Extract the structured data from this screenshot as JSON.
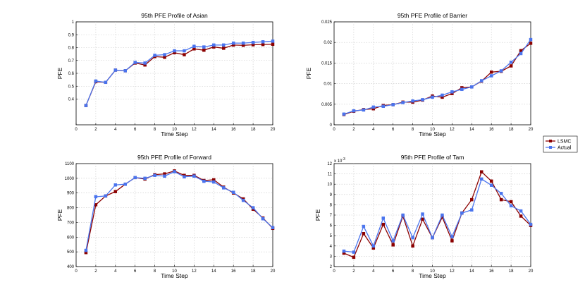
{
  "chart_data": [
    {
      "type": "line",
      "title": "95th PFE Profile of Asian",
      "xlabel": "Time Step",
      "ylabel": "PFE",
      "xlim": [
        0,
        20
      ],
      "ylim": [
        0.2,
        1
      ],
      "xticks": [
        0,
        2,
        4,
        6,
        8,
        10,
        12,
        14,
        16,
        18,
        20
      ],
      "yticks": [
        0.4,
        0.5,
        0.6,
        0.7,
        0.8,
        0.9,
        1
      ],
      "x": [
        1,
        2,
        3,
        4,
        5,
        6,
        7,
        8,
        9,
        10,
        11,
        12,
        13,
        14,
        15,
        16,
        17,
        18,
        19,
        20
      ],
      "series": [
        {
          "name": "LSMC",
          "values": [
            0.35,
            0.535,
            0.53,
            0.625,
            0.62,
            0.68,
            0.665,
            0.73,
            0.725,
            0.76,
            0.745,
            0.79,
            0.78,
            0.805,
            0.795,
            0.82,
            0.818,
            0.822,
            0.824,
            0.826
          ]
        },
        {
          "name": "Actual",
          "values": [
            0.35,
            0.54,
            0.53,
            0.625,
            0.62,
            0.685,
            0.68,
            0.74,
            0.745,
            0.775,
            0.775,
            0.81,
            0.805,
            0.82,
            0.82,
            0.835,
            0.835,
            0.84,
            0.845,
            0.85
          ]
        }
      ]
    },
    {
      "type": "line",
      "title": "95th PFE Profile of Barrier",
      "xlabel": "Time Step",
      "ylabel": "PFE",
      "xlim": [
        0,
        20
      ],
      "ylim": [
        0,
        0.025
      ],
      "xticks": [
        0,
        2,
        4,
        6,
        8,
        10,
        12,
        14,
        16,
        18,
        20
      ],
      "yticks": [
        0,
        0.005,
        0.01,
        0.015,
        0.02,
        0.025
      ],
      "ytick_labels": [
        "0",
        "0.005",
        "0.01",
        "0.015",
        "0.02",
        "0.025"
      ],
      "x": [
        1,
        2,
        3,
        4,
        5,
        6,
        7,
        8,
        9,
        10,
        11,
        12,
        13,
        14,
        15,
        16,
        17,
        18,
        19,
        20
      ],
      "series": [
        {
          "name": "LSMC",
          "values": [
            0.0025,
            0.0033,
            0.0037,
            0.0039,
            0.0047,
            0.0049,
            0.0055,
            0.0055,
            0.006,
            0.007,
            0.0067,
            0.0076,
            0.009,
            0.0092,
            0.0106,
            0.0128,
            0.013,
            0.0143,
            0.018,
            0.0198
          ]
        },
        {
          "name": "Actual",
          "values": [
            0.0026,
            0.0034,
            0.0036,
            0.0043,
            0.0045,
            0.0049,
            0.0054,
            0.0058,
            0.0061,
            0.0067,
            0.0072,
            0.008,
            0.0086,
            0.0092,
            0.0107,
            0.0119,
            0.0131,
            0.0152,
            0.0173,
            0.0207
          ]
        }
      ]
    },
    {
      "type": "line",
      "title": "95th PFE Profile of Forward",
      "xlabel": "Time Step",
      "ylabel": "PFE",
      "xlim": [
        0,
        20
      ],
      "ylim": [
        400,
        1100
      ],
      "xticks": [
        0,
        2,
        4,
        6,
        8,
        10,
        12,
        14,
        16,
        18,
        20
      ],
      "yticks": [
        400,
        500,
        600,
        700,
        800,
        900,
        1000,
        1100
      ],
      "x": [
        1,
        2,
        3,
        4,
        5,
        6,
        7,
        8,
        9,
        10,
        11,
        12,
        13,
        14,
        15,
        16,
        17,
        18,
        19,
        20
      ],
      "series": [
        {
          "name": "LSMC",
          "values": [
            495,
            820,
            880,
            910,
            960,
            1005,
            995,
            1025,
            1030,
            1050,
            1020,
            1020,
            985,
            990,
            940,
            900,
            860,
            790,
            730,
            660
          ]
        },
        {
          "name": "Actual",
          "values": [
            510,
            875,
            880,
            955,
            960,
            1005,
            1000,
            1020,
            1015,
            1045,
            1010,
            1015,
            980,
            975,
            935,
            905,
            850,
            800,
            725,
            665
          ]
        }
      ]
    },
    {
      "type": "line",
      "title": "95th PFE Profile of Tam",
      "xlabel": "Time Step",
      "ylabel": "PFE",
      "multiplier": "x 10",
      "multiplier_exp": "-3",
      "xlim": [
        0,
        20
      ],
      "ylim": [
        2,
        12
      ],
      "xticks": [
        0,
        2,
        4,
        6,
        8,
        10,
        12,
        14,
        16,
        18,
        20
      ],
      "yticks": [
        2,
        3,
        4,
        5,
        6,
        7,
        8,
        9,
        10,
        11,
        12
      ],
      "x": [
        1,
        2,
        3,
        4,
        5,
        6,
        7,
        8,
        9,
        10,
        11,
        12,
        13,
        14,
        15,
        16,
        17,
        18,
        19,
        20
      ],
      "series": [
        {
          "name": "LSMC",
          "values": [
            3.3,
            2.9,
            5.2,
            3.8,
            6.1,
            4.1,
            6.9,
            4.0,
            6.6,
            4.8,
            6.8,
            4.5,
            7.2,
            8.5,
            11.2,
            10.3,
            8.5,
            8.3,
            6.9,
            6.0
          ]
        },
        {
          "name": "Actual",
          "values": [
            3.5,
            3.4,
            5.9,
            4.0,
            6.7,
            4.5,
            7.0,
            4.8,
            7.1,
            4.8,
            7.0,
            4.9,
            7.2,
            7.5,
            10.5,
            9.9,
            9.1,
            7.9,
            7.4,
            6.1
          ]
        }
      ]
    }
  ],
  "legend": {
    "items": [
      "LSMC",
      "Actual"
    ]
  },
  "colors": {
    "LSMC": "#8b0000",
    "Actual": "#4a74ee"
  }
}
